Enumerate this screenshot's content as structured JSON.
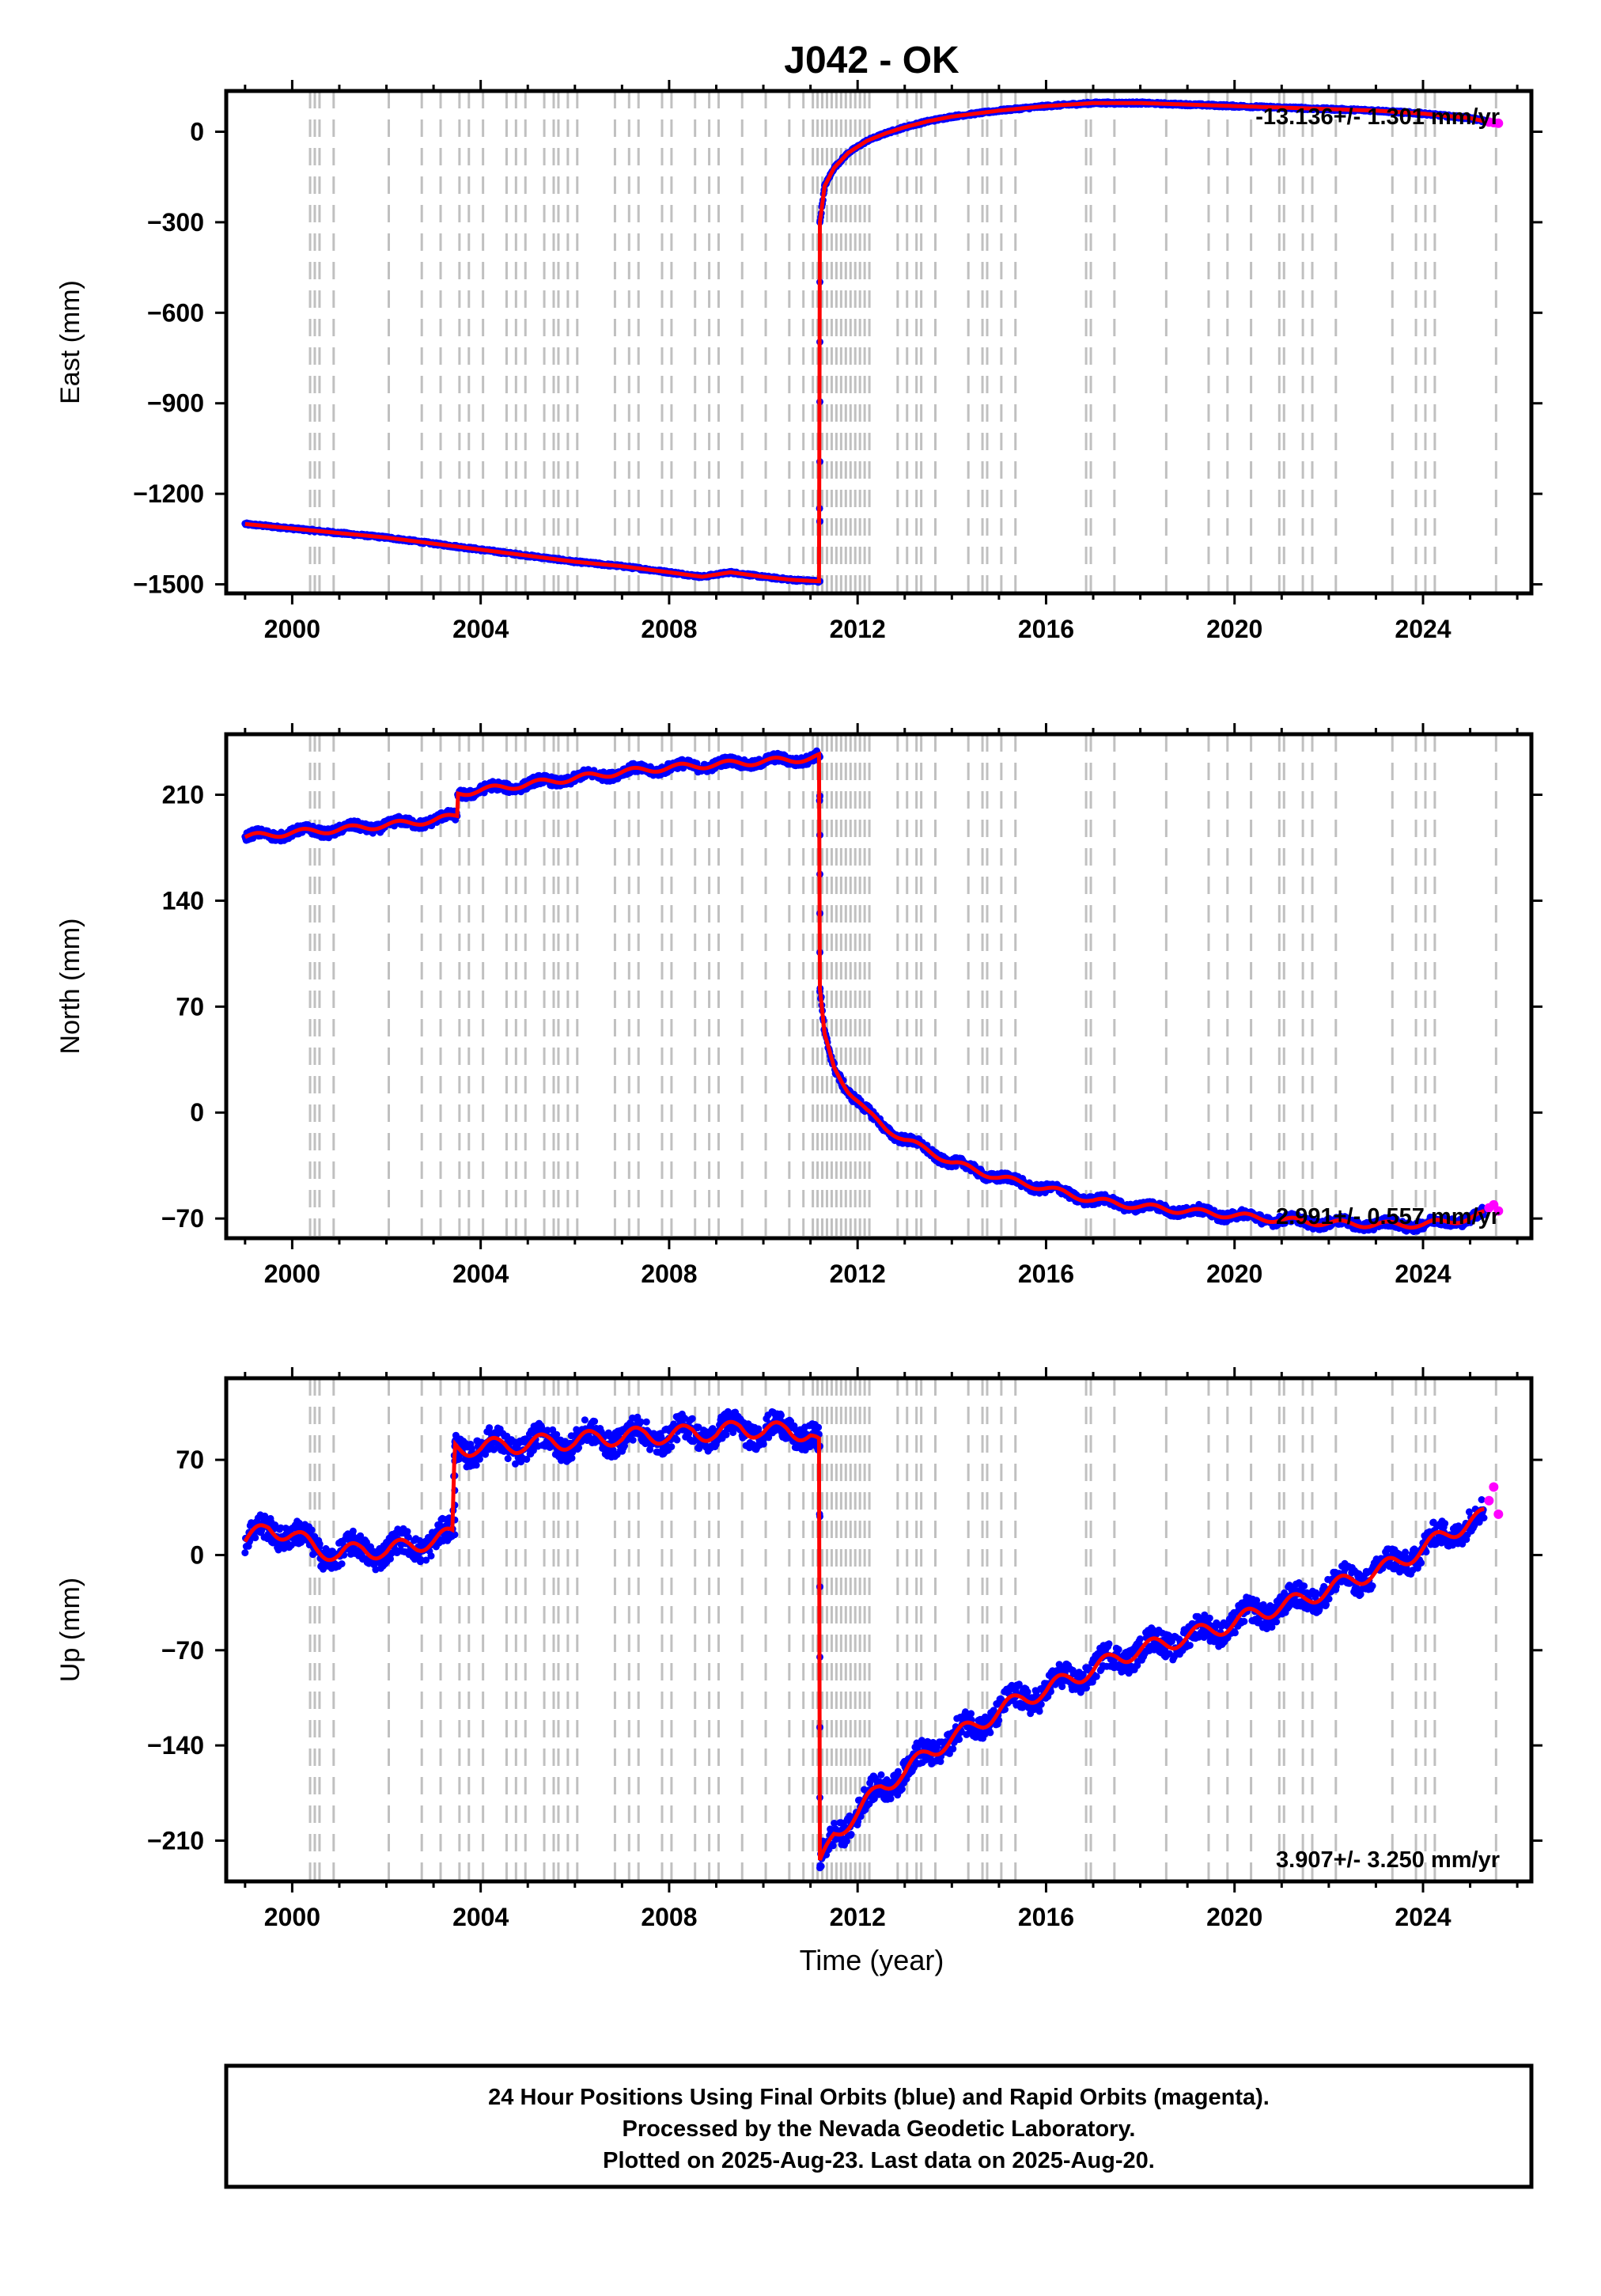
{
  "chart_data": {
    "type": "scatter",
    "title": "J042 - OK",
    "xlabel": "Time (year)",
    "xlim": [
      1998.6,
      2026.3
    ],
    "xticks": [
      2000,
      2004,
      2008,
      2012,
      2016,
      2020,
      2024
    ],
    "grid": "vertical dashed gray lines at equipment/event dates",
    "event_lines": [
      2000.38,
      2000.48,
      2000.58,
      2000.88,
      2002.05,
      2002.75,
      2003.15,
      2003.55,
      2003.75,
      2004.05,
      2004.55,
      2004.75,
      2004.95,
      2005.35,
      2005.55,
      2005.65,
      2005.85,
      2006.05,
      2006.85,
      2007.15,
      2007.35,
      2007.85,
      2008.05,
      2008.55,
      2008.85,
      2009.05,
      2009.55,
      2010.05,
      2010.55,
      2010.85,
      2011.05,
      2011.15,
      2011.25,
      2011.35,
      2011.45,
      2011.55,
      2011.65,
      2011.75,
      2011.85,
      2011.95,
      2012.05,
      2012.15,
      2012.25,
      2012.85,
      2013.05,
      2013.25,
      2013.35,
      2013.65,
      2014.35,
      2014.65,
      2014.75,
      2015.05,
      2015.35,
      2016.85,
      2016.95,
      2017.45,
      2018.55,
      2019.45,
      2019.85,
      2020.35,
      2020.95,
      2021.05,
      2021.45,
      2021.65,
      2022.15,
      2023.35,
      2023.85,
      2024.05,
      2024.25,
      2025.55
    ],
    "panels": [
      {
        "ylabel": "East (mm)",
        "ylim": [
          -1530,
          135
        ],
        "yticks": [
          0,
          -300,
          -600,
          -900,
          -1200,
          -1500
        ],
        "rate_label": "-13.136+/- 1.301 mm/yr",
        "rate_pos": "top-right",
        "final_series": {
          "name": "Final Orbits",
          "color": "#0000ff",
          "x": [
            1999.0,
            2000.0,
            2001.0,
            2002.0,
            2003.0,
            2004.0,
            2005.0,
            2006.0,
            2007.0,
            2008.0,
            2008.7,
            2009.3,
            2010.0,
            2010.6,
            2011.19,
            2011.2,
            2011.3,
            2011.5,
            2011.8,
            2012.2,
            2012.6,
            2013.0,
            2013.5,
            2014.0,
            2015.0,
            2016.0,
            2017.0,
            2018.0,
            2019.0,
            2020.0,
            2021.0,
            2022.0,
            2023.0,
            2024.0,
            2025.0,
            2025.3
          ],
          "y": [
            -1300,
            -1315,
            -1330,
            -1345,
            -1365,
            -1385,
            -1405,
            -1425,
            -1440,
            -1460,
            -1475,
            -1460,
            -1475,
            -1485,
            -1490,
            -300,
            -180,
            -120,
            -70,
            -30,
            -5,
            15,
            35,
            50,
            70,
            85,
            95,
            95,
            90,
            85,
            80,
            75,
            70,
            60,
            45,
            35
          ]
        },
        "rapid_series": {
          "name": "Rapid Orbits",
          "color": "#ff00ff",
          "x": [
            2025.4,
            2025.5,
            2025.6
          ],
          "y": [
            32,
            30,
            28
          ]
        },
        "model_color": "#ff0000"
      },
      {
        "ylabel": "North (mm)",
        "ylim": [
          -83,
          250
        ],
        "yticks": [
          210,
          140,
          70,
          0,
          -70
        ],
        "rate_label": "2.991+/- 0.557 mm/yr",
        "rate_pos": "bottom-right",
        "final_series": {
          "name": "Final Orbits",
          "color": "#0000ff",
          "x": [
            1999.0,
            2000.0,
            2001.0,
            2002.0,
            2003.0,
            2003.5,
            2003.51,
            2004.0,
            2005.0,
            2006.0,
            2007.0,
            2008.0,
            2009.0,
            2010.0,
            2011.0,
            2011.19,
            2011.2,
            2011.3,
            2011.5,
            2011.8,
            2012.2,
            2012.6,
            2013.0,
            2013.5,
            2014.0,
            2014.5,
            2015.0,
            2016.0,
            2017.0,
            2018.0,
            2019.0,
            2020.0,
            2021.0,
            2022.0,
            2023.0,
            2024.0,
            2025.0,
            2025.3
          ],
          "y": [
            182,
            185,
            187,
            190,
            193,
            196,
            211,
            213,
            217,
            221,
            225,
            228,
            230,
            232,
            234,
            235,
            80,
            50,
            30,
            15,
            0,
            -10,
            -18,
            -25,
            -33,
            -38,
            -43,
            -50,
            -58,
            -62,
            -65,
            -68,
            -71,
            -73,
            -74,
            -74,
            -70,
            -67
          ]
        },
        "rapid_series": {
          "name": "Rapid Orbits",
          "color": "#ff00ff",
          "x": [
            2025.4,
            2025.5,
            2025.6
          ],
          "y": [
            -63,
            -61,
            -65
          ]
        },
        "model_color": "#ff0000"
      },
      {
        "ylabel": "Up (mm)",
        "ylim": [
          -240,
          130
        ],
        "yticks": [
          70,
          0,
          -70,
          -140,
          -210
        ],
        "rate_label": "3.907+/- 3.250 mm/yr",
        "rate_pos": "bottom-right",
        "final_series": {
          "name": "Final Orbits",
          "color": "#0000ff",
          "x": [
            1999.0,
            1999.5,
            2000.0,
            2000.5,
            2001.0,
            2001.5,
            2002.0,
            2002.5,
            2003.0,
            2003.4,
            2003.45,
            2004.0,
            2004.5,
            2005.0,
            2005.5,
            2006.0,
            2006.5,
            2007.0,
            2007.5,
            2008.0,
            2008.5,
            2009.0,
            2009.5,
            2010.0,
            2010.5,
            2011.0,
            2011.19,
            2011.2,
            2011.5,
            2012.0,
            2012.5,
            2013.0,
            2013.5,
            2014.0,
            2014.5,
            2015.0,
            2015.5,
            2016.0,
            2016.5,
            2017.0,
            2017.5,
            2018.0,
            2018.5,
            2019.0,
            2019.5,
            2020.0,
            2020.5,
            2021.0,
            2021.5,
            2022.0,
            2022.5,
            2023.0,
            2023.5,
            2024.0,
            2024.5,
            2025.0,
            2025.3
          ],
          "y": [
            10,
            20,
            15,
            5,
            0,
            5,
            2,
            8,
            10,
            15,
            80,
            78,
            82,
            80,
            85,
            82,
            88,
            85,
            90,
            86,
            92,
            88,
            95,
            90,
            93,
            88,
            80,
            -230,
            -205,
            -190,
            -170,
            -160,
            -145,
            -135,
            -125,
            -115,
            -105,
            -100,
            -90,
            -85,
            -75,
            -70,
            -65,
            -60,
            -55,
            -50,
            -42,
            -38,
            -32,
            -25,
            -18,
            -12,
            -5,
            5,
            15,
            25,
            28
          ]
        },
        "rapid_series": {
          "name": "Rapid Orbits",
          "color": "#ff00ff",
          "x": [
            2025.4,
            2025.5,
            2025.6
          ],
          "y": [
            40,
            50,
            30
          ]
        },
        "model_color": "#ff0000"
      }
    ],
    "footer": [
      "24 Hour Positions Using Final Orbits (blue) and Rapid Orbits (magenta).",
      "Processed by the Nevada Geodetic Laboratory.",
      "Plotted on 2025-Aug-23. Last data on 2025-Aug-20."
    ]
  }
}
